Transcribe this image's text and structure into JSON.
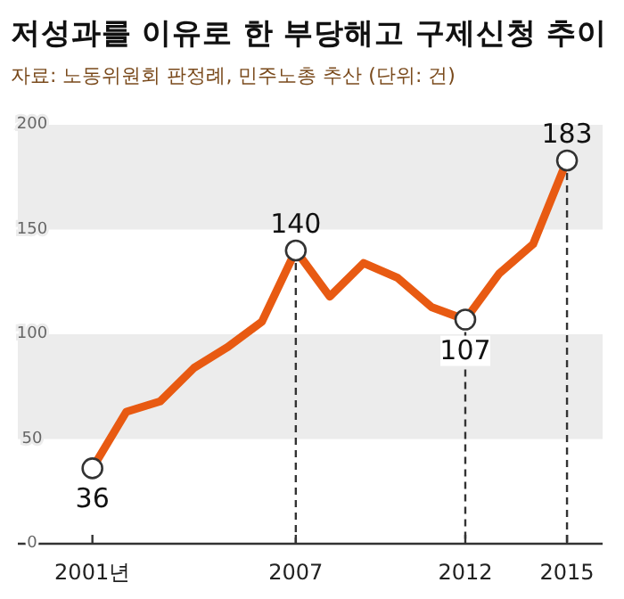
{
  "chart_data": {
    "type": "line",
    "title": "저성과를 이유로 한 부당해고 구제신청 추이",
    "subtitle": "자료: 노동위원회 판정례, 민주노총 추산 (단위: 건)",
    "x": [
      2001,
      2002,
      2003,
      2004,
      2005,
      2006,
      2007,
      2008,
      2009,
      2010,
      2011,
      2012,
      2013,
      2014,
      2015
    ],
    "series": [
      {
        "color": "#e85a12",
        "marker": "none",
        "values": [
          36,
          63,
          68,
          84,
          94,
          106,
          140,
          118,
          134,
          127,
          113,
          107,
          129,
          143,
          183
        ]
      },
      {
        "type": "scatter",
        "color": "#ffffff",
        "marker": "circle",
        "x": [
          2001,
          2007,
          2012,
          2015
        ],
        "values": [
          36,
          140,
          107,
          183
        ],
        "value_labels": [
          "36",
          "140",
          "107",
          "183"
        ]
      }
    ],
    "xlim": [
      1998.8,
      2016.05
    ],
    "ylim": [
      0,
      200
    ],
    "xticks": [
      {
        "value": 2001,
        "label": "2001년"
      },
      2007,
      2012,
      2015
    ],
    "yticks": [
      0,
      50,
      100,
      150,
      200
    ],
    "bands": [
      {
        "axis": "y",
        "from": 50,
        "to": 100,
        "color": "#ececec"
      },
      {
        "axis": "y",
        "from": 150,
        "to": 200,
        "color": "#ececec"
      }
    ],
    "ref_lines": [
      {
        "axis": "x",
        "value": 2007,
        "line_style": "dashed",
        "color": "#333333"
      },
      {
        "axis": "x",
        "value": 2012,
        "line_style": "dashed",
        "color": "#333333"
      },
      {
        "axis": "x",
        "value": 2015,
        "line_style": "dashed",
        "color": "#333333"
      }
    ],
    "line_style": "solid"
  }
}
